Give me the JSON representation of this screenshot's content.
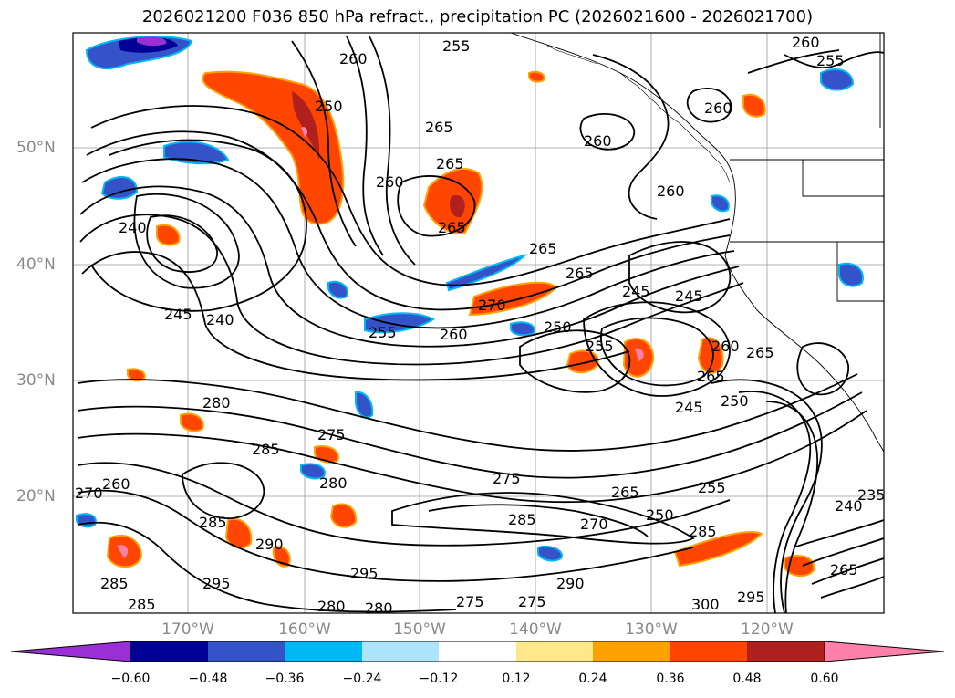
{
  "title": "2026021200 F036 850 hPa refract., precipitation PC (2026021600 - 2026021700)",
  "map": {
    "lat_labels": [
      "50°N",
      "40°N",
      "30°N",
      "20°N"
    ],
    "lon_labels": [
      "170°W",
      "160°W",
      "150°W",
      "140°W",
      "130°W",
      "120°W"
    ],
    "contour_labels": [
      "255",
      "260",
      "255",
      "260",
      "250",
      "265",
      "265",
      "260",
      "260",
      "260",
      "265",
      "260",
      "240",
      "265",
      "245",
      "240",
      "270",
      "265",
      "245",
      "250",
      "245",
      "255",
      "260",
      "255",
      "260",
      "265",
      "245",
      "250",
      "280",
      "275",
      "285",
      "280",
      "270",
      "260",
      "265",
      "275",
      "285",
      "290",
      "265",
      "250",
      "255",
      "285",
      "240",
      "235",
      "285",
      "295",
      "295",
      "280",
      "280",
      "275",
      "270",
      "275",
      "290",
      "285",
      "300",
      "295",
      "265",
      "285"
    ]
  },
  "colorbar": {
    "colors": [
      "#9a2fd6",
      "#000094",
      "#3553c9",
      "#00b8f5",
      "#ade3fb",
      "#ffffff",
      "#ffe88a",
      "#ffa200",
      "#ff4500",
      "#b0201e",
      "#ff80aa"
    ],
    "tick_labels": [
      "−0.60",
      "−0.48",
      "−0.36",
      "−0.24",
      "−0.12",
      "0.12",
      "0.24",
      "0.36",
      "0.48",
      "0.60"
    ]
  }
}
